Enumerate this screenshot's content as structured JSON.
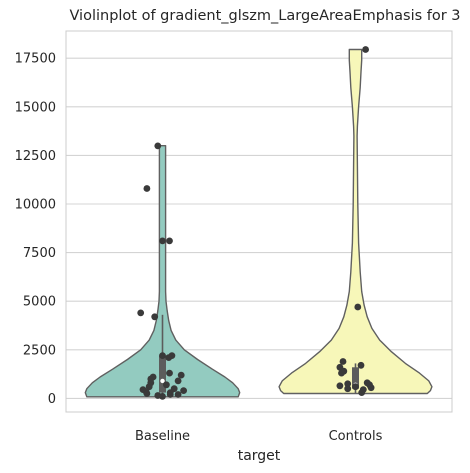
{
  "chart_data": {
    "type": "violin",
    "title": "Violinplot of gradient_glszm_LargeAreaEmphasis for 3",
    "xlabel": "target",
    "ylabel": "",
    "categories": [
      "Baseline",
      "Controls"
    ],
    "ylim": [
      -700,
      18900
    ],
    "yticks": [
      0,
      2500,
      5000,
      7500,
      10000,
      12500,
      15000,
      17500
    ],
    "ytick_labels": [
      "0",
      "2500",
      "5000",
      "7500",
      "10000",
      "12500",
      "15000",
      "17500"
    ],
    "grid": true,
    "legend": "none",
    "colors": {
      "Baseline": "#93cbc0",
      "Controls": "#f7f7b9",
      "outline": "#606060",
      "points": "#3a3a3a",
      "grid": "#d4d4d4",
      "box": "#5c5c5c"
    },
    "violins": [
      {
        "name": "Baseline",
        "min": 80,
        "max": 13000,
        "profile": [
          [
            80,
            0.97
          ],
          [
            300,
            0.99
          ],
          [
            500,
            0.97
          ],
          [
            800,
            0.9
          ],
          [
            1100,
            0.8
          ],
          [
            1500,
            0.64
          ],
          [
            2000,
            0.45
          ],
          [
            2500,
            0.28
          ],
          [
            3000,
            0.17
          ],
          [
            3500,
            0.11
          ],
          [
            4000,
            0.08
          ],
          [
            4500,
            0.06
          ],
          [
            5000,
            0.045
          ],
          [
            5500,
            0.04
          ],
          [
            6000,
            0.04
          ],
          [
            7000,
            0.04
          ],
          [
            8000,
            0.04
          ],
          [
            9000,
            0.04
          ],
          [
            10000,
            0.04
          ],
          [
            11000,
            0.04
          ],
          [
            12000,
            0.04
          ],
          [
            12700,
            0.04
          ],
          [
            13000,
            0.04
          ]
        ],
        "box": {
          "q1": 300,
          "median": 900,
          "q3": 2200,
          "whisker_low": 80,
          "whisker_high": 4300
        },
        "points": [
          [
            12990,
            -0.06
          ],
          [
            10800,
            -0.2
          ],
          [
            8100,
            0.0
          ],
          [
            8100,
            0.09
          ],
          [
            4400,
            -0.28
          ],
          [
            4200,
            -0.1
          ],
          [
            2200,
            0.0
          ],
          [
            2200,
            0.12
          ],
          [
            2100,
            0.08
          ],
          [
            1300,
            0.09
          ],
          [
            1200,
            0.24
          ],
          [
            1100,
            -0.12
          ],
          [
            1000,
            -0.15
          ],
          [
            900,
            0.2
          ],
          [
            800,
            -0.15
          ],
          [
            700,
            0.05
          ],
          [
            600,
            -0.17
          ],
          [
            500,
            0.15
          ],
          [
            450,
            -0.25
          ],
          [
            400,
            0.27
          ],
          [
            350,
            -0.21
          ],
          [
            300,
            0.1
          ],
          [
            250,
            -0.2
          ],
          [
            200,
            0.1
          ],
          [
            150,
            -0.06
          ],
          [
            100,
            0.0
          ],
          [
            200,
            0.2
          ]
        ]
      },
      {
        "name": "Controls",
        "min": 250,
        "max": 17950,
        "profile": [
          [
            250,
            0.92
          ],
          [
            400,
            0.96
          ],
          [
            600,
            0.98
          ],
          [
            900,
            0.94
          ],
          [
            1300,
            0.82
          ],
          [
            1800,
            0.64
          ],
          [
            2400,
            0.46
          ],
          [
            3000,
            0.31
          ],
          [
            3600,
            0.21
          ],
          [
            4200,
            0.15
          ],
          [
            4800,
            0.11
          ],
          [
            5500,
            0.08
          ],
          [
            6500,
            0.06
          ],
          [
            8000,
            0.04
          ],
          [
            10000,
            0.03
          ],
          [
            12000,
            0.025
          ],
          [
            13500,
            0.02
          ],
          [
            14000,
            0.025
          ],
          [
            15000,
            0.04
          ],
          [
            16000,
            0.06
          ],
          [
            16800,
            0.07
          ],
          [
            17400,
            0.08
          ],
          [
            17950,
            0.08
          ]
        ],
        "box": {
          "q1": 500,
          "median": 700,
          "q3": 1600,
          "whisker_low": 250,
          "whisker_high": 1800
        },
        "points": [
          [
            17950,
            0.13
          ],
          [
            4700,
            0.03
          ],
          [
            1900,
            -0.16
          ],
          [
            1700,
            0.07
          ],
          [
            1600,
            -0.2
          ],
          [
            1400,
            -0.15
          ],
          [
            1300,
            -0.18
          ],
          [
            800,
            0.15
          ],
          [
            750,
            -0.1
          ],
          [
            700,
            0.18
          ],
          [
            650,
            -0.2
          ],
          [
            600,
            0.0
          ],
          [
            550,
            0.2
          ],
          [
            500,
            -0.1
          ],
          [
            450,
            0.1
          ],
          [
            300,
            0.08
          ]
        ]
      }
    ]
  }
}
